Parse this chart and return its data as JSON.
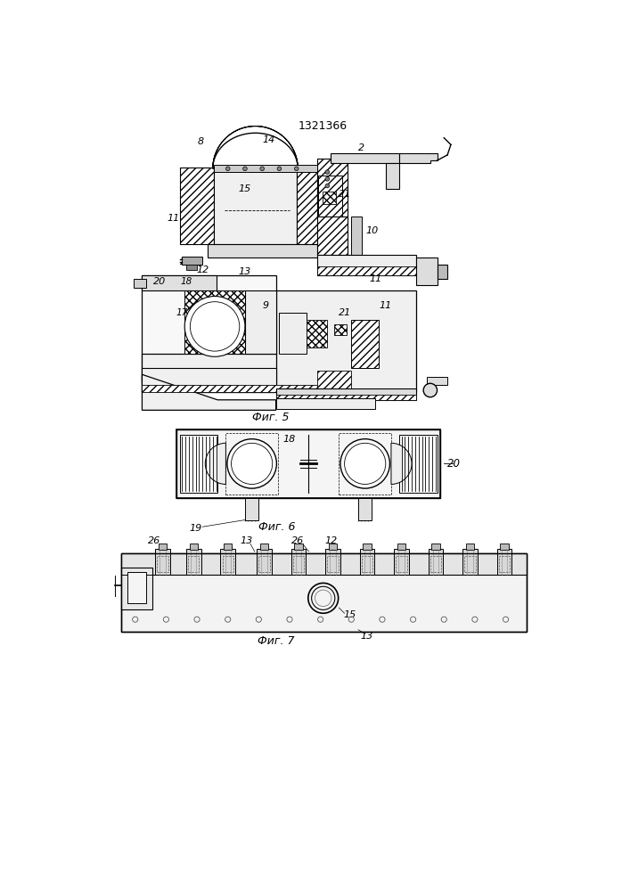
{
  "title": "1321366",
  "fig5_label": "Фиг. 5",
  "fig6_label": "Фиг. 6",
  "fig7_label": "Фиг. 7",
  "bg_color": "#ffffff",
  "lc": "#000000"
}
